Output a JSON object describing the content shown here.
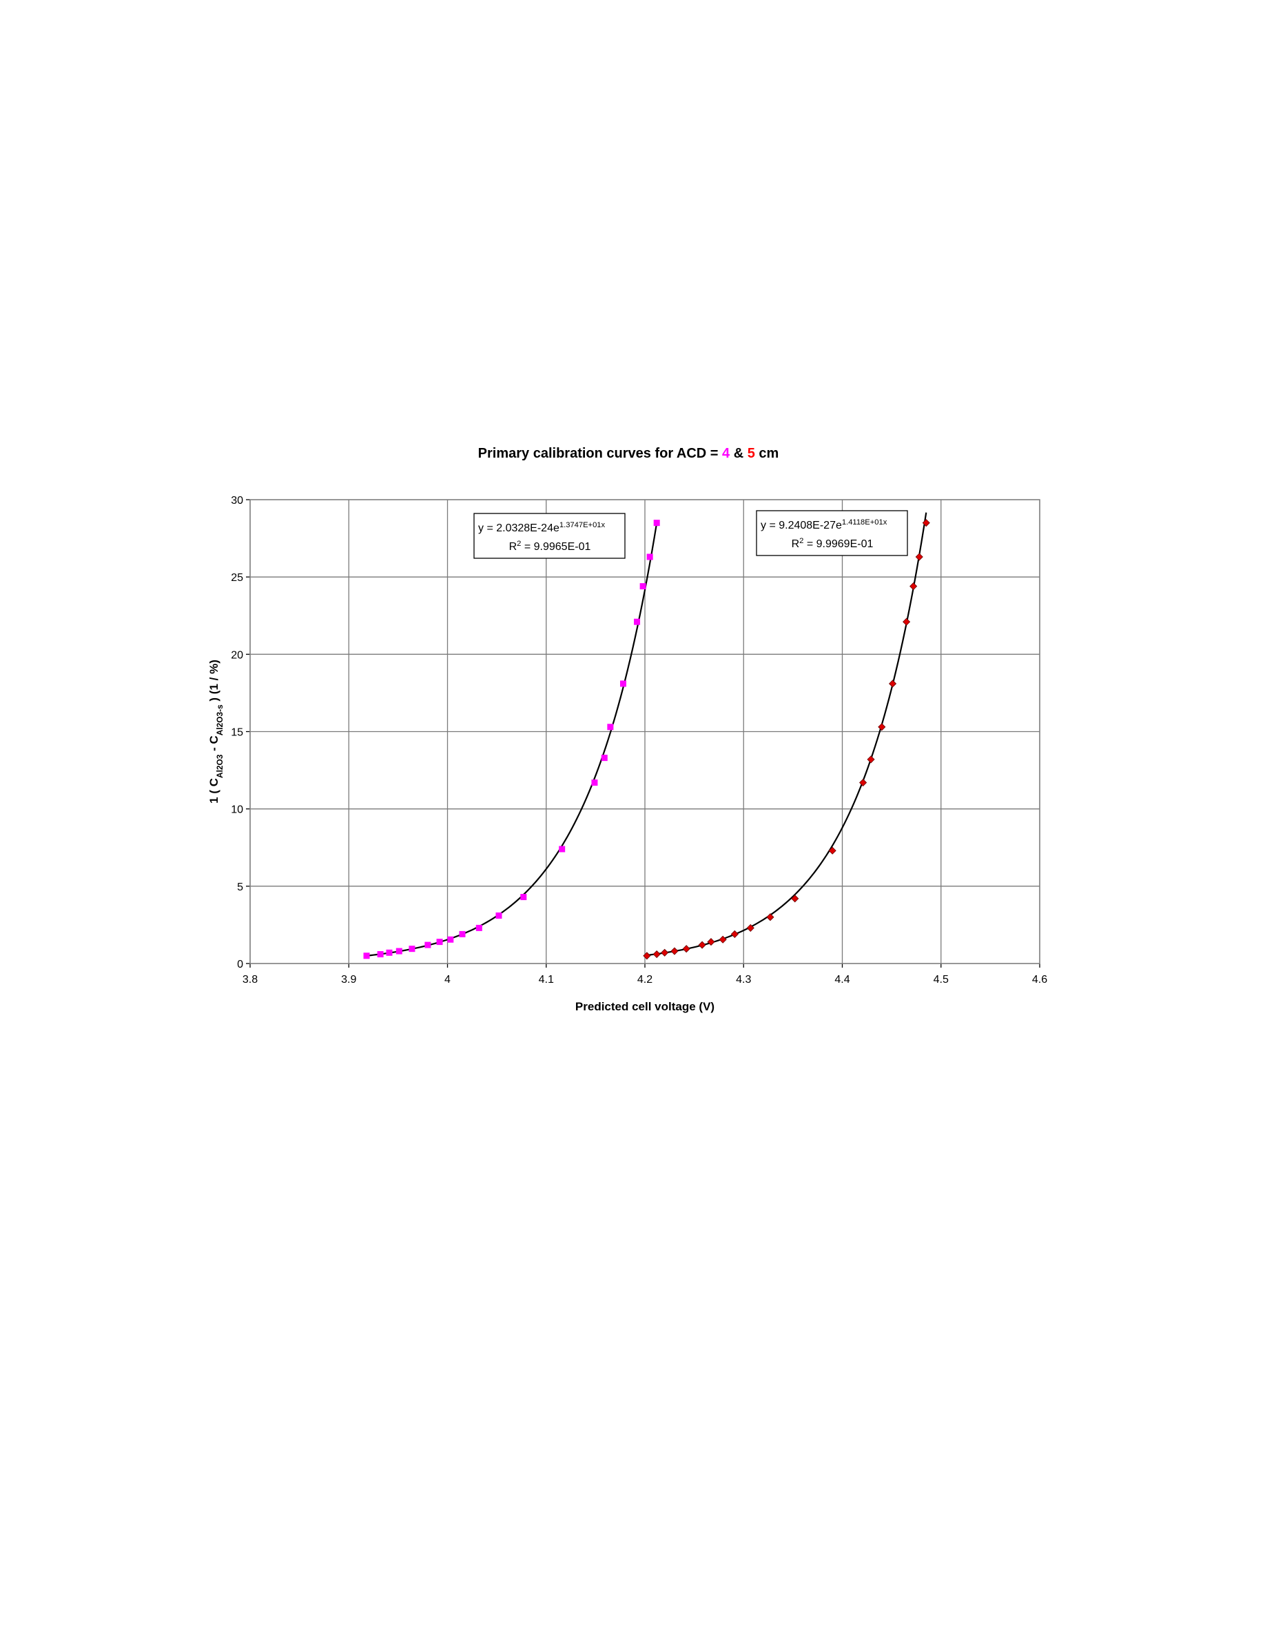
{
  "chart_data": {
    "type": "scatter",
    "title": [
      {
        "text": "Primary calibration curves for ACD = ",
        "color": "#000000"
      },
      {
        "text": "4",
        "color": "#ff00ff"
      },
      {
        "text": " & ",
        "color": "#000000"
      },
      {
        "text": "5",
        "color": "#ff0000"
      },
      {
        "text": " cm",
        "color": "#000000"
      }
    ],
    "x_label": "Predicted cell voltage (V)",
    "y_label": [
      {
        "text": "1 ( C"
      },
      {
        "text": "Al2O3",
        "sub": true
      },
      {
        "text": " - C"
      },
      {
        "text": "Al2O3-s",
        "sub": true
      },
      {
        "text": " ) (1 / %)"
      }
    ],
    "xlim": [
      3.8,
      4.6
    ],
    "xticks": [
      3.8,
      3.9,
      4,
      4.1,
      4.2,
      4.3,
      4.4,
      4.5,
      4.6
    ],
    "ylim": [
      0,
      30
    ],
    "yticks": [
      0,
      5,
      10,
      15,
      20,
      25,
      30
    ],
    "grid": true,
    "series": [
      {
        "name": "ACD = 4 cm",
        "color": "#ff00ff",
        "marker": "square",
        "x": [
          3.918,
          3.932,
          3.941,
          3.951,
          3.964,
          3.98,
          3.992,
          4.003,
          4.015,
          4.032,
          4.052,
          4.077,
          4.116,
          4.149,
          4.159,
          4.165,
          4.178,
          4.192,
          4.198,
          4.205,
          4.212
        ],
        "values": [
          0.5,
          0.6,
          0.7,
          0.8,
          0.95,
          1.2,
          1.4,
          1.55,
          1.9,
          2.3,
          3.1,
          4.3,
          7.4,
          11.7,
          13.3,
          15.3,
          18.1,
          22.1,
          24.4,
          26.3,
          28.5
        ],
        "trendline": {
          "equation": [
            {
              "text": "y = 2.0328E-24e"
            },
            {
              "text": "1.3747E+01x",
              "sup": true
            }
          ],
          "r2": [
            {
              "text": "R"
            },
            {
              "text": "2",
              "sup": true
            },
            {
              "text": " = 9.9965E-01"
            }
          ],
          "coef": 2.0328e-24,
          "rate": 13.747
        }
      },
      {
        "name": "ACD = 5 cm",
        "color": "#dd0000",
        "marker": "diamond",
        "x": [
          4.202,
          4.212,
          4.22,
          4.23,
          4.242,
          4.258,
          4.267,
          4.279,
          4.291,
          4.307,
          4.327,
          4.352,
          4.39,
          4.421,
          4.429,
          4.44,
          4.451,
          4.465,
          4.472,
          4.478,
          4.485
        ],
        "values": [
          0.5,
          0.6,
          0.7,
          0.8,
          0.95,
          1.2,
          1.4,
          1.55,
          1.9,
          2.3,
          3.0,
          4.2,
          7.3,
          11.7,
          13.2,
          15.3,
          18.1,
          22.1,
          24.4,
          26.3,
          28.5
        ],
        "trendline": {
          "equation": [
            {
              "text": "y = 9.2408E-27e"
            },
            {
              "text": "1.4118E+01x",
              "sup": true
            }
          ],
          "r2": [
            {
              "text": "R"
            },
            {
              "text": "2",
              "sup": true
            },
            {
              "text": " = 9.9969E-01"
            }
          ],
          "coef": 9.2408e-27,
          "rate": 14.118
        }
      }
    ]
  }
}
